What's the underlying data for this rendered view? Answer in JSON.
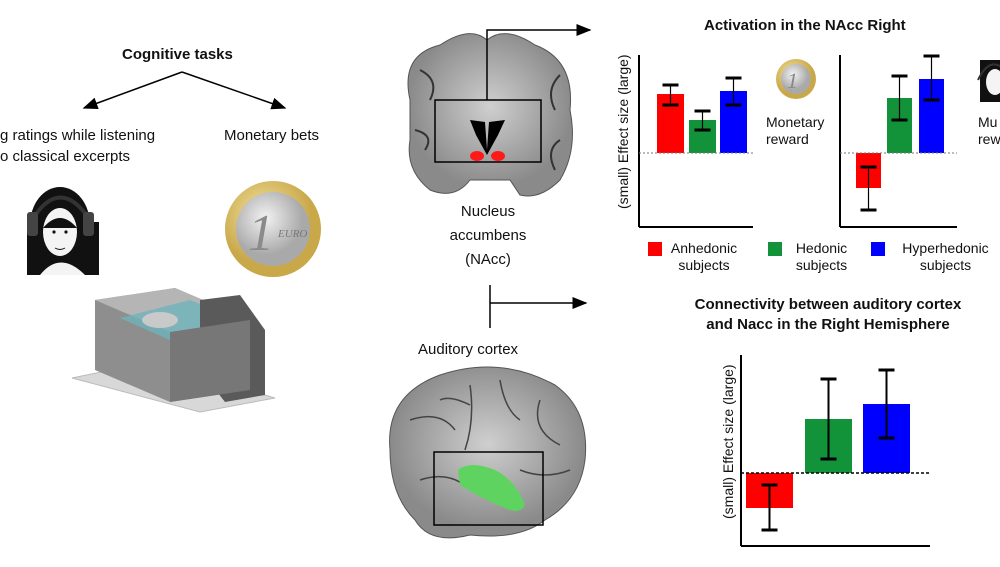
{
  "left": {
    "title": "Cognitive tasks",
    "task_music_line1": "g ratings while listening",
    "task_music_line2": "o classical excerpts",
    "task_money": "Monetary bets",
    "icons": [
      "headphone-portrait-icon",
      "euro-coin-icon",
      "mri-scanner-icon"
    ],
    "coin_text": "EURO",
    "coin_number": "1"
  },
  "middle": {
    "nacc_line1": "Nucleus",
    "nacc_line2": "accumbens",
    "nacc_line3": "(NAcc)",
    "auditory_label": "Auditory cortex",
    "nacc_color": "#ff1a1a",
    "auditory_color": "#5fd35f"
  },
  "top_right": {
    "title": "Activation in the NAcc Right",
    "monetary_label_1": "Monetary",
    "monetary_label_2": "reward",
    "music_label_1": "Mu",
    "music_label_2": "rew"
  },
  "legend": [
    {
      "line1": "Anhedonic",
      "line2": "subjects",
      "color": "#ff0000"
    },
    {
      "line1": "Hedonic",
      "line2": "subjects",
      "color": "#12933a"
    },
    {
      "line1": "Hyperhedonic",
      "line2": "subjects",
      "color": "#0000ff"
    }
  ],
  "bottom_right": {
    "title_line1": "Connectivity between auditory cortex",
    "title_line2": "and Nacc in the Right Hemisphere"
  },
  "chart_data": [
    {
      "type": "bar",
      "title": "Activation in the NAcc Right",
      "panel": "Monetary reward",
      "ylabel": "(small)   Effect size   (large)",
      "yticks": false,
      "ylim": [
        -0.74,
        0.98
      ],
      "categories": [
        "Anhedonic subjects",
        "Hedonic subjects",
        "Hyperhedonic subjects"
      ],
      "values": [
        0.59,
        0.33,
        0.62
      ],
      "error_low": [
        0.48,
        0.23,
        0.48
      ],
      "error_high": [
        0.68,
        0.42,
        0.75
      ],
      "colors": [
        "#ff0000",
        "#12933a",
        "#0000ff"
      ]
    },
    {
      "type": "bar",
      "title": "Activation in the NAcc Right",
      "panel": "Musical reward",
      "yticks": false,
      "ylim": [
        -0.74,
        0.98
      ],
      "categories": [
        "Anhedonic subjects",
        "Hedonic subjects",
        "Hyperhedonic subjects"
      ],
      "values": [
        -0.35,
        0.55,
        0.74
      ],
      "error_low": [
        -0.57,
        0.33,
        0.53
      ],
      "error_high": [
        -0.14,
        0.77,
        0.97
      ],
      "colors": [
        "#ff0000",
        "#12933a",
        "#0000ff"
      ]
    },
    {
      "type": "bar",
      "title": "Connectivity between auditory cortex and Nacc in the Right Hemisphere",
      "ylabel": "(small)   Effect size   (large)",
      "yticks": false,
      "ylim": [
        -0.73,
        1.18
      ],
      "categories": [
        "Anhedonic subjects",
        "Hedonic subjects",
        "Hyperhedonic subjects"
      ],
      "values": [
        -0.35,
        0.54,
        0.69
      ],
      "error_low": [
        -0.57,
        0.14,
        0.35
      ],
      "error_high": [
        -0.12,
        0.94,
        1.03
      ],
      "colors": [
        "#ff0000",
        "#12933a",
        "#0000ff"
      ]
    }
  ]
}
